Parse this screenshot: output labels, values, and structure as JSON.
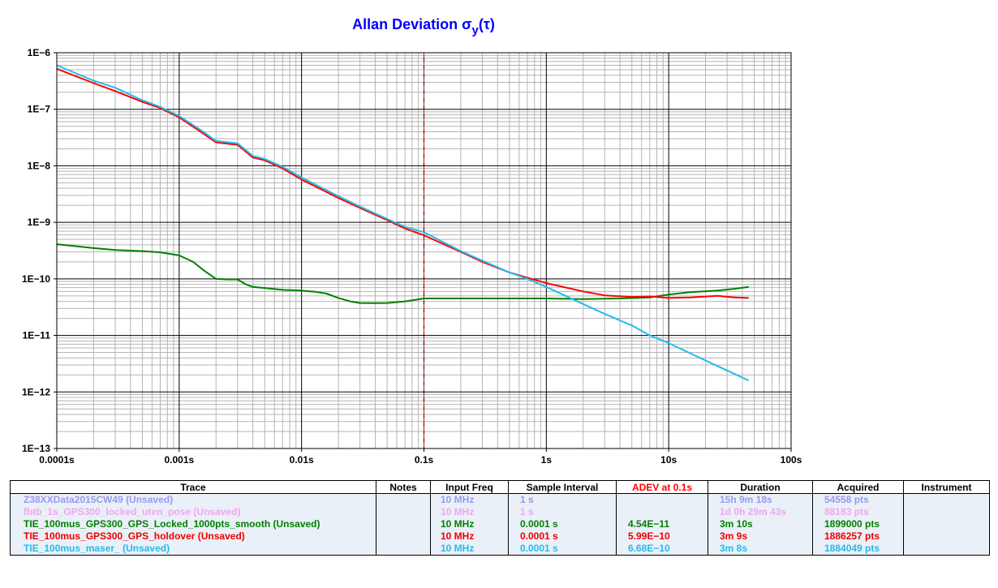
{
  "chart_data": {
    "type": "line",
    "title": "Allan Deviation",
    "title_symbol": "σ",
    "title_subscript": "y",
    "title_suffix": "(τ)",
    "x_scale": "log",
    "y_scale": "log",
    "xlim": [
      0.0001,
      100
    ],
    "ylim": [
      1e-13,
      1e-06
    ],
    "grid": true,
    "x_ticks": [
      {
        "value": 0.0001,
        "label": "0.0001s"
      },
      {
        "value": 0.001,
        "label": "0.001s"
      },
      {
        "value": 0.01,
        "label": "0.01s"
      },
      {
        "value": 0.1,
        "label": "0.1s"
      },
      {
        "value": 1,
        "label": "1s"
      },
      {
        "value": 10,
        "label": "10s"
      },
      {
        "value": 100,
        "label": "100s"
      }
    ],
    "y_ticks": [
      {
        "value": 1e-06,
        "label": "1E−6"
      },
      {
        "value": 1e-07,
        "label": "1E−7"
      },
      {
        "value": 1e-08,
        "label": "1E−8"
      },
      {
        "value": 1e-09,
        "label": "1E−9"
      },
      {
        "value": 1e-10,
        "label": "1E−10"
      },
      {
        "value": 1e-11,
        "label": "1E−11"
      },
      {
        "value": 1e-12,
        "label": "1E−12"
      },
      {
        "value": 1e-13,
        "label": "1E−13"
      }
    ],
    "marker_line": {
      "x": 0.1,
      "color": "#ff0000",
      "style": "dashed"
    },
    "series": [
      {
        "name": "TIE_100mus_GPS300_GPS_Locked_1000pts_smooth",
        "color": "#008000",
        "points": [
          [
            0.0001,
            4.1e-10
          ],
          [
            0.0002,
            3.5e-10
          ],
          [
            0.0003,
            3.25e-10
          ],
          [
            0.0005,
            3.1e-10
          ],
          [
            0.0007,
            2.95e-10
          ],
          [
            0.001,
            2.6e-10
          ],
          [
            0.0013,
            2e-10
          ],
          [
            0.0016,
            1.4e-10
          ],
          [
            0.002,
            1e-10
          ],
          [
            0.0025,
            9.8e-11
          ],
          [
            0.003,
            9.8e-11
          ],
          [
            0.0035,
            8e-11
          ],
          [
            0.004,
            7.2e-11
          ],
          [
            0.005,
            6.9e-11
          ],
          [
            0.007,
            6.4e-11
          ],
          [
            0.01,
            6.2e-11
          ],
          [
            0.013,
            5.9e-11
          ],
          [
            0.016,
            5.5e-11
          ],
          [
            0.02,
            4.6e-11
          ],
          [
            0.025,
            4e-11
          ],
          [
            0.03,
            3.75e-11
          ],
          [
            0.04,
            3.72e-11
          ],
          [
            0.05,
            3.75e-11
          ],
          [
            0.07,
            4e-11
          ],
          [
            0.1,
            4.5e-11
          ],
          [
            0.2,
            4.5e-11
          ],
          [
            0.5,
            4.5e-11
          ],
          [
            1,
            4.5e-11
          ],
          [
            2,
            4.4e-11
          ],
          [
            4,
            4.5e-11
          ],
          [
            7,
            4.7e-11
          ],
          [
            10,
            5.3e-11
          ],
          [
            15,
            5.8e-11
          ],
          [
            25,
            6.2e-11
          ],
          [
            35,
            6.7e-11
          ],
          [
            45,
            7.2e-11
          ]
        ]
      },
      {
        "name": "TIE_100mus_GPS300_GPS_holdover",
        "color": "#ff0000",
        "points": [
          [
            0.0001,
            5.2e-07
          ],
          [
            0.0002,
            2.9e-07
          ],
          [
            0.0003,
            2.1e-07
          ],
          [
            0.0005,
            1.35e-07
          ],
          [
            0.0007,
            1.05e-07
          ],
          [
            0.001,
            7.2e-08
          ],
          [
            0.0015,
            4e-08
          ],
          [
            0.002,
            2.6e-08
          ],
          [
            0.003,
            2.35e-08
          ],
          [
            0.004,
            1.4e-08
          ],
          [
            0.005,
            1.25e-08
          ],
          [
            0.007,
            9e-09
          ],
          [
            0.01,
            5.7e-09
          ],
          [
            0.02,
            2.7e-09
          ],
          [
            0.03,
            1.8e-09
          ],
          [
            0.05,
            1.1e-09
          ],
          [
            0.07,
            7.8e-10
          ],
          [
            0.1,
            5.9e-10
          ],
          [
            0.2,
            3e-10
          ],
          [
            0.3,
            2e-10
          ],
          [
            0.5,
            1.3e-10
          ],
          [
            0.7,
            1.05e-10
          ],
          [
            1,
            8.4e-11
          ],
          [
            2,
            6e-11
          ],
          [
            3,
            5.1e-11
          ],
          [
            5,
            4.8e-11
          ],
          [
            7,
            4.9e-11
          ],
          [
            10,
            4.6e-11
          ],
          [
            15,
            4.7e-11
          ],
          [
            25,
            5e-11
          ],
          [
            35,
            4.7e-11
          ],
          [
            45,
            4.6e-11
          ]
        ]
      },
      {
        "name": "TIE_100mus_maser_",
        "color": "#22bbee",
        "points": [
          [
            0.0001,
            6e-07
          ],
          [
            0.0002,
            3.2e-07
          ],
          [
            0.0003,
            2.4e-07
          ],
          [
            0.0005,
            1.45e-07
          ],
          [
            0.0007,
            1.1e-07
          ],
          [
            0.001,
            7.6e-08
          ],
          [
            0.0015,
            4.3e-08
          ],
          [
            0.002,
            2.75e-08
          ],
          [
            0.003,
            2.5e-08
          ],
          [
            0.004,
            1.5e-08
          ],
          [
            0.005,
            1.32e-08
          ],
          [
            0.007,
            9.6e-09
          ],
          [
            0.01,
            6.2e-09
          ],
          [
            0.02,
            2.9e-09
          ],
          [
            0.03,
            1.9e-09
          ],
          [
            0.05,
            1.15e-09
          ],
          [
            0.07,
            8.3e-10
          ],
          [
            0.1,
            6.7e-10
          ],
          [
            0.2,
            3.1e-10
          ],
          [
            0.3,
            2.1e-10
          ],
          [
            0.5,
            1.3e-10
          ],
          [
            0.7,
            1e-10
          ],
          [
            1,
            7.2e-11
          ],
          [
            2,
            3.6e-11
          ],
          [
            3,
            2.4e-11
          ],
          [
            5,
            1.5e-11
          ],
          [
            7,
            1e-11
          ],
          [
            10,
            7.3e-12
          ],
          [
            20,
            3.6e-12
          ],
          [
            30,
            2.4e-12
          ],
          [
            45,
            1.6e-12
          ]
        ]
      }
    ]
  },
  "table": {
    "headers": {
      "trace": "Trace",
      "notes": "Notes",
      "input_freq": "Input Freq",
      "sample_interval": "Sample Interval",
      "adev": "ADEV at 0.1s",
      "duration": "Duration",
      "acquired": "Acquired",
      "instrument": "Instrument"
    },
    "rows": [
      {
        "trace": "Z38XXData2015CW49 (Unsaved)",
        "notes": "",
        "input_freq": "10 MHz",
        "sample_interval": "1 s",
        "adev": "",
        "duration": "15h 9m 18s",
        "acquired": "54558 pts",
        "instrument": "",
        "color": "#9999ee"
      },
      {
        "trace": "fbtb_1s_GPS300_locked_uten_pose (Unsaved)",
        "notes": "",
        "input_freq": "10 MHz",
        "sample_interval": "1 s",
        "adev": "",
        "duration": "1d 0h 29m 43s",
        "acquired": "88183 pts",
        "instrument": "",
        "color": "#f0a6ee"
      },
      {
        "trace": "TIE_100mus_GPS300_GPS_Locked_1000pts_smooth  (Unsaved)",
        "notes": "",
        "input_freq": "10 MHz",
        "sample_interval": "0.0001 s",
        "adev": "4.54E−11",
        "duration": "3m 10s",
        "acquired": "1899000 pts",
        "instrument": "",
        "color": "#008000"
      },
      {
        "trace": "TIE_100mus_GPS300_GPS_holdover  (Unsaved)",
        "notes": "",
        "input_freq": "10 MHz",
        "sample_interval": "0.0001 s",
        "adev": "5.99E−10",
        "duration": "3m 9s",
        "acquired": "1886257 pts",
        "instrument": "",
        "color": "#ee0000"
      },
      {
        "trace": "TIE_100mus_maser_ (Unsaved)",
        "notes": "",
        "input_freq": "10 MHz",
        "sample_interval": "0.0001 s",
        "adev": "6.68E−10",
        "duration": "3m 8s",
        "acquired": "1884049 pts",
        "instrument": "",
        "color": "#22bbee"
      }
    ]
  }
}
